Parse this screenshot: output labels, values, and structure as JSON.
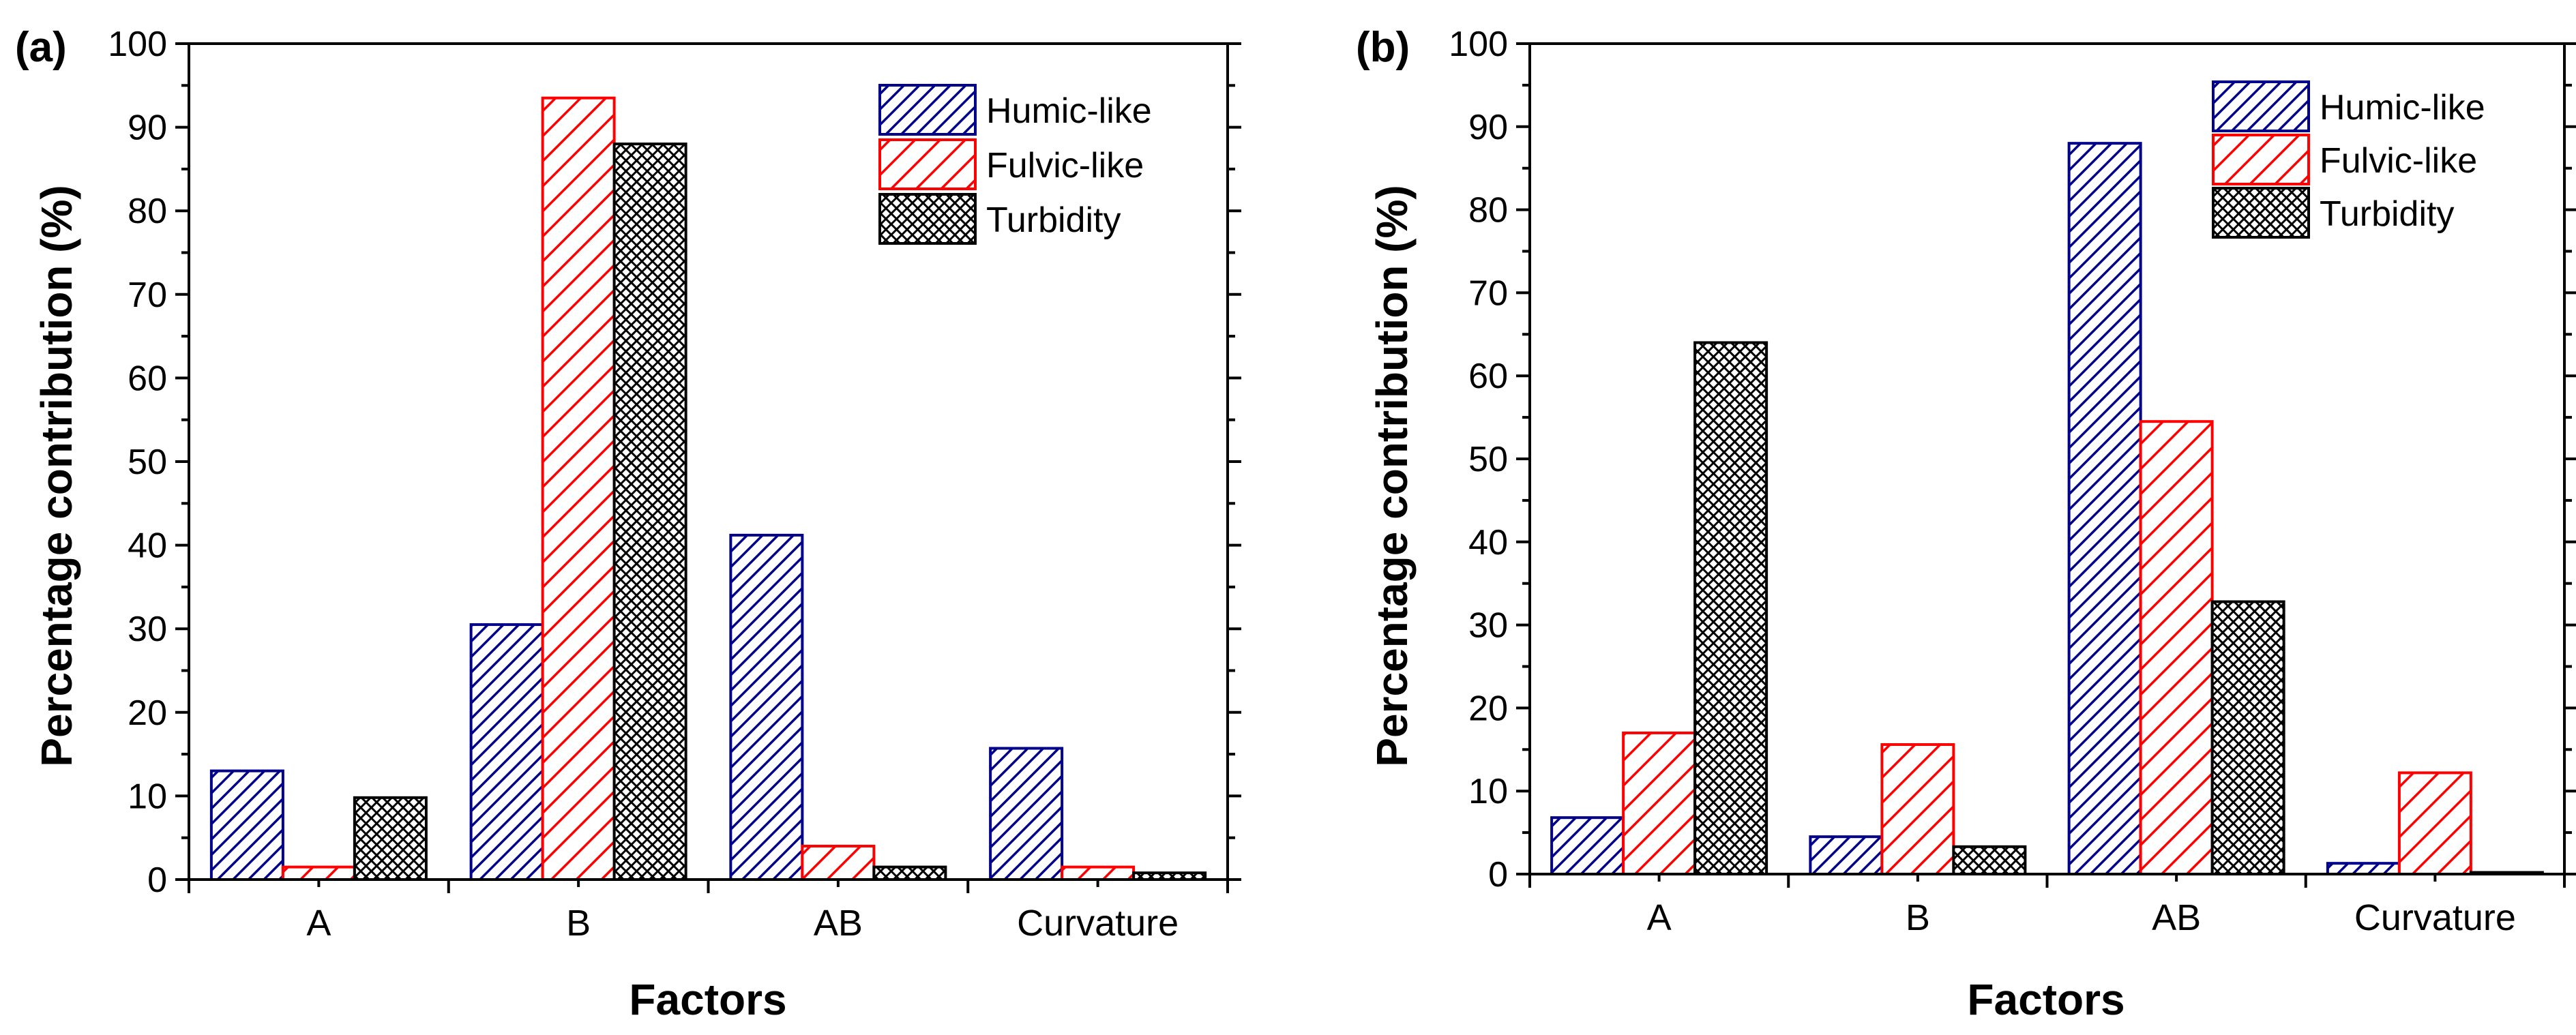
{
  "chart_data": [
    {
      "type": "bar",
      "panel_label": "(a)",
      "categories": [
        "A",
        "B",
        "AB",
        "Curvature"
      ],
      "series": [
        {
          "name": "Humic-like",
          "values": [
            13,
            30.5,
            41.2,
            15.7
          ]
        },
        {
          "name": "Fulvic-like",
          "values": [
            1.5,
            93.5,
            4,
            1.5
          ]
        },
        {
          "name": "Turbidity",
          "values": [
            9.8,
            88,
            1.5,
            0.8
          ]
        }
      ],
      "title": "",
      "xlabel": "Factors",
      "ylabel": "Percentage contribution (%)",
      "ylim": [
        0,
        100
      ],
      "yticks": [
        "0",
        "10",
        "20",
        "30",
        "40",
        "50",
        "60",
        "70",
        "80",
        "90",
        "100"
      ],
      "grid": false,
      "legend": "top-right"
    },
    {
      "type": "bar",
      "panel_label": "(b)",
      "categories": [
        "A",
        "B",
        "AB",
        "Curvature"
      ],
      "series": [
        {
          "name": "Humic-like",
          "values": [
            6.8,
            4.5,
            88,
            1.3
          ]
        },
        {
          "name": "Fulvic-like",
          "values": [
            17,
            15.6,
            54.5,
            12.2
          ]
        },
        {
          "name": "Turbidity",
          "values": [
            64,
            3.3,
            32.8,
            0.2
          ]
        }
      ],
      "title": "",
      "xlabel": "Factors",
      "ylabel": "Percentage contribution (%)",
      "ylim": [
        0,
        100
      ],
      "yticks": [
        "0",
        "10",
        "20",
        "30",
        "40",
        "50",
        "60",
        "70",
        "80",
        "90",
        "100"
      ],
      "grid": false,
      "legend": "top-right"
    }
  ],
  "series_style": [
    {
      "edge": "#00008b",
      "pattern": "diagonal-hatch"
    },
    {
      "edge": "#ff0000",
      "pattern": "diagonal-hatch"
    },
    {
      "edge": "#000000",
      "pattern": "crosshatch"
    }
  ]
}
